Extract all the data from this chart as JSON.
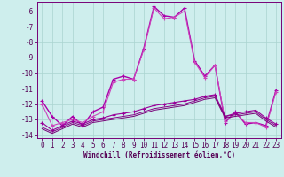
{
  "xlabel": "Windchill (Refroidissement éolien,°C)",
  "background_color": "#ceeeed",
  "grid_color": "#aad4d0",
  "xlim": [
    -0.5,
    23.5
  ],
  "ylim": [
    -14.2,
    -5.4
  ],
  "yticks": [
    -6,
    -7,
    -8,
    -9,
    -10,
    -11,
    -12,
    -13,
    -14
  ],
  "xticks": [
    0,
    1,
    2,
    3,
    4,
    5,
    6,
    7,
    8,
    9,
    10,
    11,
    12,
    13,
    14,
    15,
    16,
    17,
    18,
    19,
    20,
    21,
    22,
    23
  ],
  "series": [
    {
      "y": [
        -11.8,
        -12.8,
        -13.4,
        -12.8,
        -13.4,
        -12.5,
        -12.2,
        -10.4,
        -10.2,
        -10.4,
        -8.4,
        -5.7,
        -6.3,
        -6.4,
        -5.8,
        -9.2,
        -10.2,
        -9.5,
        -13.2,
        -12.5,
        -13.3,
        -13.2,
        -13.4,
        -11.1
      ],
      "color": "#aa00aa",
      "lw": 1.0,
      "marker": "+",
      "ms": 3.5
    },
    {
      "y": [
        -12.0,
        -13.4,
        -13.2,
        -13.0,
        -13.2,
        -12.8,
        -12.5,
        -10.6,
        -10.4,
        -10.4,
        -8.5,
        -5.8,
        -6.5,
        -6.4,
        -6.0,
        -9.3,
        -10.3,
        -9.5,
        -13.1,
        -12.6,
        -13.2,
        -13.2,
        -13.5,
        -11.2
      ],
      "color": "#cc44bb",
      "lw": 0.8,
      "marker": "+",
      "ms": 3.0
    },
    {
      "y": [
        -13.2,
        -13.7,
        -13.4,
        -13.1,
        -13.3,
        -13.0,
        -12.9,
        -12.7,
        -12.6,
        -12.5,
        -12.3,
        -12.1,
        -12.0,
        -11.9,
        -11.8,
        -11.7,
        -11.5,
        -11.4,
        -12.8,
        -12.6,
        -12.5,
        -12.4,
        -12.9,
        -13.3
      ],
      "color": "#990099",
      "lw": 0.8,
      "marker": "+",
      "ms": 2.5
    },
    {
      "y": [
        -13.5,
        -13.8,
        -13.5,
        -13.2,
        -13.4,
        -13.1,
        -13.0,
        -12.9,
        -12.8,
        -12.7,
        -12.5,
        -12.3,
        -12.2,
        -12.1,
        -12.0,
        -11.8,
        -11.6,
        -11.5,
        -12.8,
        -12.7,
        -12.6,
        -12.5,
        -13.0,
        -13.4
      ],
      "color": "#880088",
      "lw": 0.7,
      "marker": null,
      "ms": 0
    },
    {
      "y": [
        -13.6,
        -13.9,
        -13.6,
        -13.3,
        -13.5,
        -13.2,
        -13.1,
        -13.0,
        -12.9,
        -12.8,
        -12.6,
        -12.4,
        -12.3,
        -12.2,
        -12.1,
        -11.9,
        -11.7,
        -11.6,
        -12.9,
        -12.8,
        -12.7,
        -12.6,
        -13.1,
        -13.5
      ],
      "color": "#770077",
      "lw": 0.7,
      "marker": null,
      "ms": 0
    }
  ]
}
